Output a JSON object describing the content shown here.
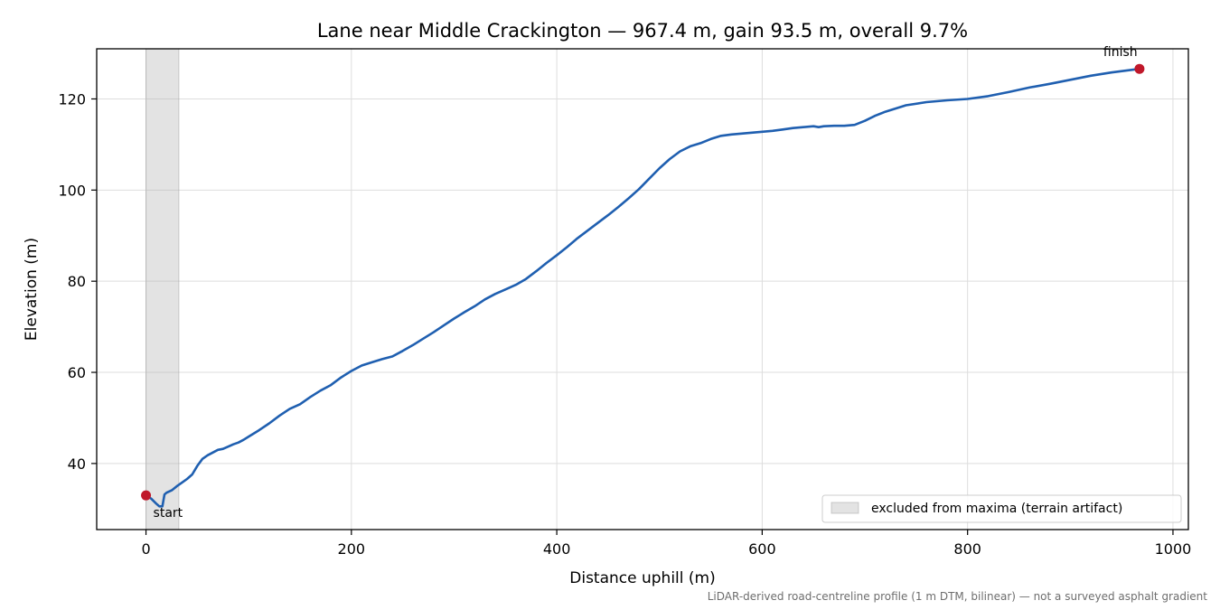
{
  "chart_data": {
    "type": "line",
    "title": "Lane near Middle Crackington — 967.4 m, gain 93.5 m, overall 9.7%",
    "xlabel": "Distance uphill (m)",
    "ylabel": "Elevation (m)",
    "xlim": [
      -48,
      1015
    ],
    "ylim": [
      25.5,
      131
    ],
    "x_ticks": [
      0,
      200,
      400,
      600,
      800,
      1000
    ],
    "y_ticks": [
      40,
      60,
      80,
      100,
      120
    ],
    "grid": true,
    "line_color": "#1f5fb0",
    "marker_color": "#c0182a",
    "series": [
      {
        "x": [
          0,
          5,
          10,
          13,
          16,
          18,
          20,
          25,
          30,
          35,
          40,
          45,
          50,
          55,
          60,
          65,
          70,
          75,
          80,
          85,
          90,
          95,
          100,
          110,
          120,
          130,
          140,
          150,
          160,
          170,
          180,
          190,
          200,
          210,
          220,
          230,
          240,
          250,
          260,
          270,
          280,
          290,
          300,
          310,
          320,
          330,
          340,
          350,
          360,
          370,
          380,
          390,
          400,
          410,
          420,
          430,
          440,
          450,
          460,
          470,
          480,
          490,
          500,
          510,
          520,
          530,
          540,
          550,
          560,
          570,
          580,
          590,
          600,
          610,
          620,
          630,
          640,
          650,
          655,
          660,
          670,
          680,
          690,
          700,
          710,
          720,
          740,
          760,
          780,
          800,
          820,
          840,
          860,
          880,
          900,
          920,
          940,
          967.4
        ],
        "y": [
          33,
          32.3,
          31.2,
          30.6,
          30.6,
          33.2,
          33.6,
          34.1,
          35.0,
          35.8,
          36.6,
          37.6,
          39.5,
          41.0,
          41.8,
          42.4,
          43.0,
          43.2,
          43.7,
          44.2,
          44.6,
          45.2,
          45.9,
          47.3,
          48.8,
          50.5,
          52.0,
          53.0,
          54.6,
          56.0,
          57.2,
          58.9,
          60.3,
          61.5,
          62.2,
          62.9,
          63.5,
          64.7,
          66.0,
          67.4,
          68.8,
          70.3,
          71.8,
          73.2,
          74.5,
          76.0,
          77.2,
          78.2,
          79.2,
          80.5,
          82.2,
          84.0,
          85.7,
          87.5,
          89.4,
          91.1,
          92.8,
          94.5,
          96.3,
          98.2,
          100.2,
          102.5,
          104.8,
          106.8,
          108.5,
          109.6,
          110.3,
          111.2,
          111.9,
          112.2,
          112.4,
          112.6,
          112.8,
          113.0,
          113.3,
          113.6,
          113.8,
          114.0,
          113.8,
          114.0,
          114.1,
          114.1,
          114.3,
          115.2,
          116.3,
          117.2,
          118.6,
          119.3,
          119.7,
          120.0,
          120.6,
          121.5,
          122.5,
          123.3,
          124.2,
          125.1,
          125.8,
          126.6
        ]
      }
    ],
    "annotations": [
      {
        "text": "start",
        "x": 0,
        "y": 33
      },
      {
        "text": "finish",
        "x": 967.4,
        "y": 126.6
      }
    ],
    "excluded_span": [
      0,
      32
    ],
    "legend": {
      "label": "excluded from maxima (terrain artifact)",
      "placement": "lower-right"
    },
    "caption": "LiDAR-derived road-centreline profile (1 m DTM, bilinear) — not a surveyed asphalt gradient"
  }
}
